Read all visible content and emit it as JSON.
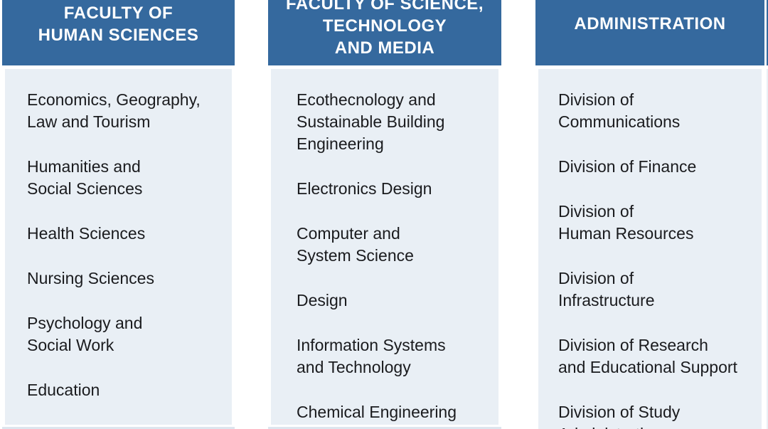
{
  "colors": {
    "header_bg": "#35699E",
    "header_text": "#FFFFFF",
    "body_bg": "#E9EFF5",
    "body_text": "#1A1B1E",
    "page_bg": "#FFFFFF"
  },
  "columns": [
    {
      "name": "faculty-of-human-sciences",
      "header_lines": [
        "FACULTY OF",
        "HUMAN SCIENCES"
      ],
      "items": [
        [
          "Economics, Geography,",
          "Law and Tourism"
        ],
        [
          "Humanities and",
          "Social Sciences"
        ],
        [
          "Health Sciences"
        ],
        [
          "Nursing Sciences"
        ],
        [
          "Psychology and",
          "Social Work"
        ],
        [
          "Education"
        ]
      ]
    },
    {
      "name": "faculty-of-science-technology-and-media",
      "header_lines": [
        "FACULTY OF SCIENCE,",
        "TECHNOLOGY",
        "AND MEDIA"
      ],
      "items": [
        [
          "Ecothecnology and",
          "Sustainable Building",
          "Engineering"
        ],
        [
          "Electronics Design"
        ],
        [
          "Computer and",
          "System Science"
        ],
        [
          "Design"
        ],
        [
          "Information Systems",
          "and Technology"
        ],
        [
          "Chemical Engineering"
        ]
      ]
    },
    {
      "name": "administration",
      "header_lines": [
        "ADMINISTRATION"
      ],
      "items": [
        [
          "Division of",
          "Communications"
        ],
        [
          "Division of Finance"
        ],
        [
          "Division of",
          "Human Resources"
        ],
        [
          "Division of",
          "Infrastructure"
        ],
        [
          "Division of Research",
          "and Educational Support"
        ],
        [
          "Division of Study",
          "Administration"
        ]
      ]
    }
  ]
}
